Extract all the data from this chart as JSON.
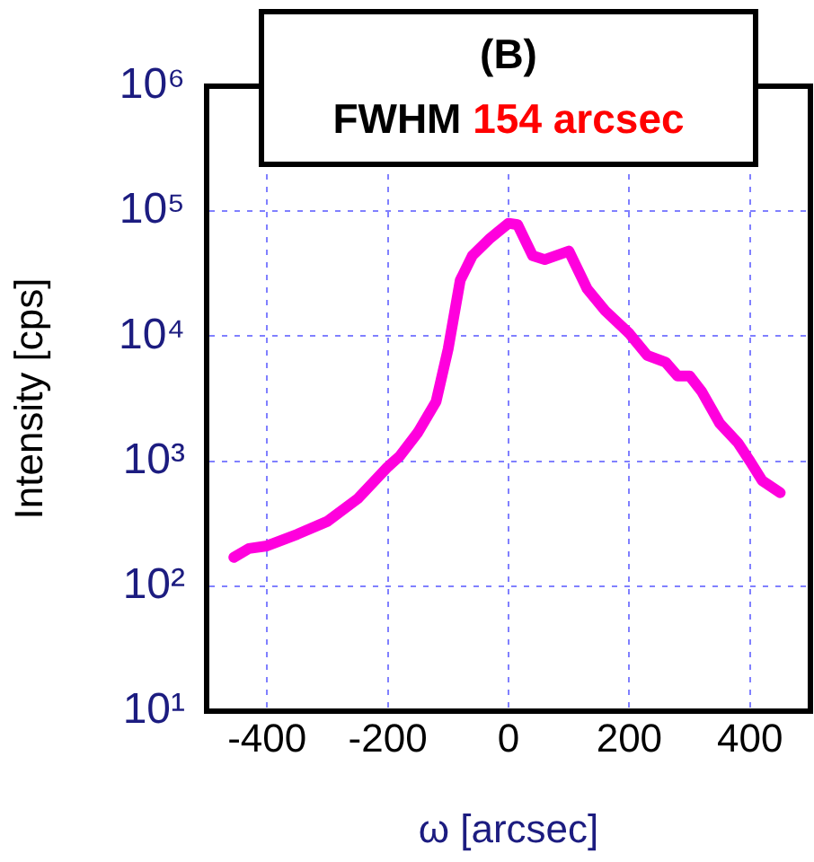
{
  "chart_data": {
    "type": "line",
    "title": "(B)",
    "annotations": [
      "FWHM",
      "154 arcsec"
    ],
    "xlabel": "ω [arcsec]",
    "ylabel": "Intensity [cps]",
    "x": [
      -455,
      -430,
      -400,
      -350,
      -300,
      -250,
      -200,
      -180,
      -150,
      -120,
      -100,
      -80,
      -60,
      -30,
      0,
      15,
      40,
      60,
      100,
      130,
      160,
      200,
      230,
      260,
      280,
      300,
      320,
      350,
      380,
      400,
      420,
      450
    ],
    "series": [
      {
        "color": "#ff00dd",
        "values": [
          170,
          200,
          210,
          260,
          330,
          500,
          900,
          1100,
          1700,
          3000,
          7900,
          28000,
          44000,
          61000,
          80000,
          78000,
          44000,
          41000,
          48000,
          24000,
          16000,
          10500,
          7000,
          6200,
          4800,
          4800,
          3600,
          2000,
          1400,
          1000,
          700,
          560
        ]
      }
    ],
    "xlim": [
      -500,
      500
    ],
    "xticks": [
      -400,
      -200,
      0,
      200,
      400
    ],
    "ylim": [
      10,
      1000000
    ],
    "yticks": [
      {
        "value": 10,
        "label": "10¹"
      },
      {
        "value": 100,
        "label": "10²"
      },
      {
        "value": 1000,
        "label": "10³"
      },
      {
        "value": 10000,
        "label": "10⁴"
      },
      {
        "value": 100000,
        "label": "10⁵"
      },
      {
        "value": 1000000,
        "label": "10⁶"
      }
    ],
    "log": "y",
    "grid": true,
    "legend": false,
    "marker": "none",
    "line_style": "solid"
  }
}
